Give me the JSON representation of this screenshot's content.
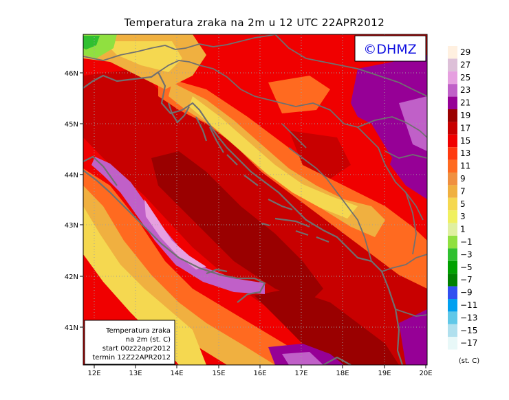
{
  "title": "Temperatura zraka na 2m u 12 UTC 22APR2012",
  "copyright": "©DHMZ",
  "info_box": {
    "line1": "Temperatura zraka",
    "line2": "na 2m (st. C)",
    "line3": "start 00z22apr2012",
    "line4": "termin 12Z22APR2012"
  },
  "axes": {
    "lon_labels": [
      "12E",
      "13E",
      "14E",
      "15E",
      "16E",
      "17E",
      "18E",
      "19E",
      "20E"
    ],
    "lat_labels": [
      "46N",
      "45N",
      "44N",
      "43N",
      "42N",
      "41N"
    ]
  },
  "colorbar": {
    "unit": "(st. C)",
    "labels": [
      "29",
      "27",
      "25",
      "23",
      "21",
      "19",
      "17",
      "15",
      "13",
      "11",
      "9",
      "7",
      "5",
      "3",
      "1",
      "−1",
      "−3",
      "−5",
      "−7",
      "−9",
      "−11",
      "−13",
      "−15",
      "−17"
    ],
    "colors": [
      "#fff0e0",
      "#ddc0d8",
      "#e6a0e0",
      "#c060c8",
      "#960096",
      "#9a0000",
      "#c80000",
      "#f00000",
      "#ff3a10",
      "#ff6a20",
      "#f09040",
      "#f0b040",
      "#f5d850",
      "#f0f060",
      "#e0f0a0",
      "#90e040",
      "#30c030",
      "#00a000",
      "#008000",
      "#3050f0",
      "#00a0f0",
      "#60c8e8",
      "#b0e0ee",
      "#e8f8f8"
    ]
  },
  "colors": {
    "coastline": "#707070",
    "sea_warm": "#c80000",
    "land_base": "#f00000"
  }
}
